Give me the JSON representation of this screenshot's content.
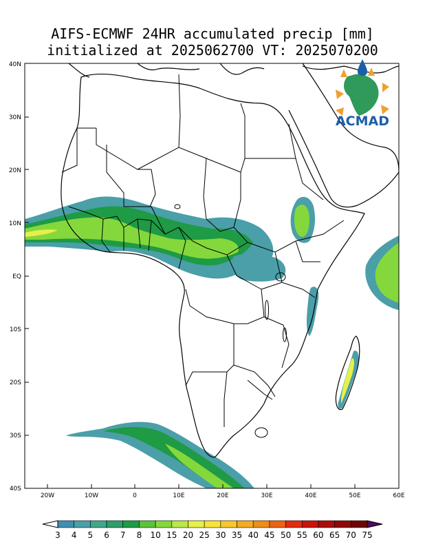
{
  "title": {
    "line1": "AIFS-ECMWF 24HR accumulated precip [mm]",
    "line2": "initialized at 2025062700 VT: 2025070200"
  },
  "axes": {
    "lon_ticks": [
      "20W",
      "10W",
      "0",
      "10E",
      "20E",
      "30E",
      "40E",
      "50E",
      "60E"
    ],
    "lat_ticks": [
      "40N",
      "30N",
      "20N",
      "10N",
      "EQ",
      "10S",
      "20S",
      "30S",
      "40S"
    ]
  },
  "logo": {
    "text": "ACMAD",
    "icon": "africa-map-sun-icon"
  },
  "colorbar": {
    "labels": [
      "3",
      "4",
      "5",
      "6",
      "7",
      "8",
      "10",
      "15",
      "20",
      "25",
      "30",
      "35",
      "40",
      "45",
      "50",
      "55",
      "60",
      "65",
      "70",
      "75"
    ],
    "colors": [
      "#3f8fb0",
      "#4a9fa8",
      "#3fa889",
      "#2f9f6a",
      "#1f9a45",
      "#5cc43a",
      "#84d83c",
      "#b8e84a",
      "#e6f04a",
      "#f7e23a",
      "#f6c82e",
      "#f3ac22",
      "#ef8d1a",
      "#ea6414",
      "#e22c10",
      "#c8140c",
      "#ab0c0a",
      "#8f0808",
      "#6e0505",
      "#4d0b5f"
    ]
  },
  "precip_colors": {
    "light": "#4a9fa8",
    "mid": "#1f9a45",
    "heavy": "#84d83c",
    "peak": "#e6f04a"
  }
}
